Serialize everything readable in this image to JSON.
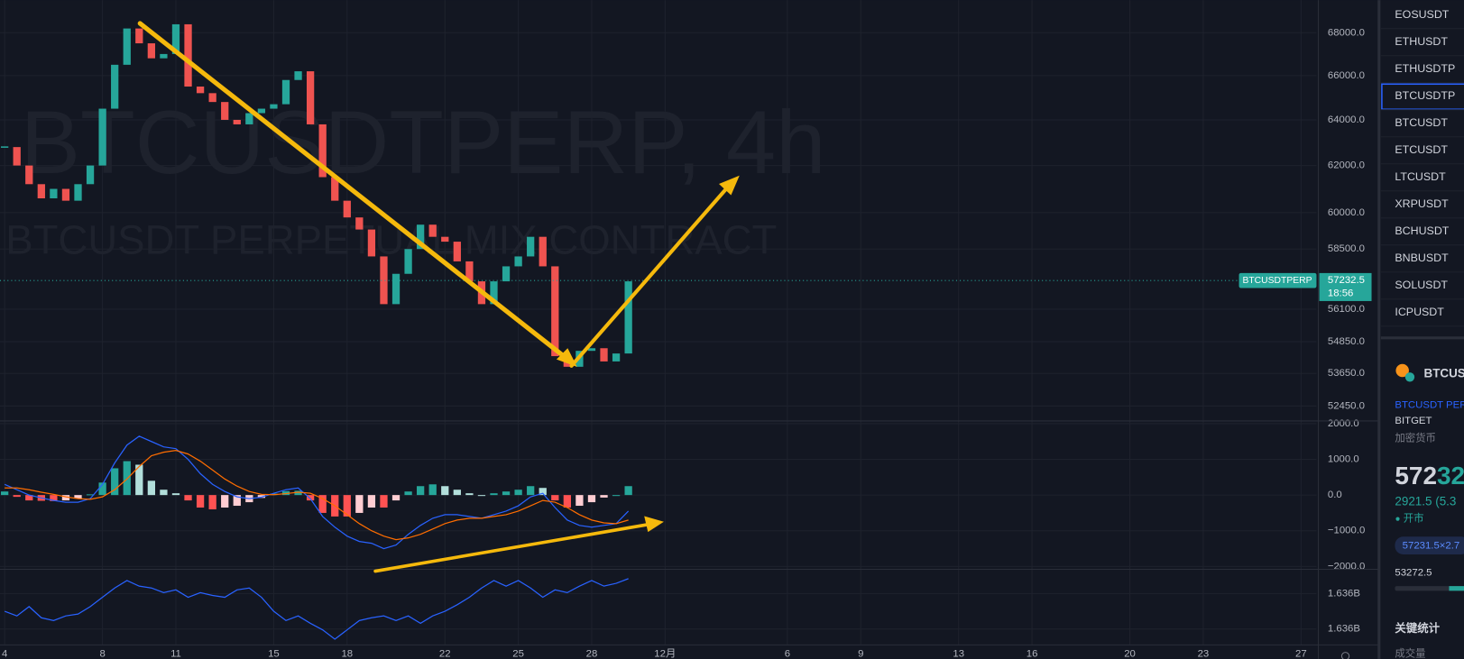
{
  "chart_data": [
    {
      "type": "candlestick",
      "watermark_title": "BTCUSDTPERP, 4h",
      "watermark_subtitle": "BTCUSDT PERPETUAL MIX CONTRACT",
      "x": [
        4,
        4.5,
        5,
        5.5,
        6,
        6.5,
        7,
        7.5,
        8,
        8.5,
        9,
        9.5,
        10,
        10.5,
        11,
        11.5,
        12,
        12.5,
        13,
        13.5,
        14,
        14.5,
        15,
        15.5,
        16,
        16.5,
        17,
        17.5,
        18,
        18.5,
        19,
        19.5,
        20,
        20.5,
        21,
        21.5,
        22,
        22.5,
        23,
        23.5,
        24,
        24.5,
        25,
        25.5,
        26,
        26.5,
        27,
        27.5,
        28,
        28.5,
        29,
        29.5
      ],
      "close": [
        62800,
        62000,
        61200,
        60600,
        61000,
        60500,
        61200,
        62000,
        64500,
        66500,
        68200,
        67500,
        66800,
        67000,
        68400,
        65500,
        65200,
        64800,
        64000,
        63800,
        64300,
        64500,
        64700,
        65800,
        66200,
        63800,
        61500,
        60500,
        59800,
        59300,
        58200,
        56300,
        57500,
        58500,
        59500,
        59000,
        58800,
        58000,
        57200,
        56300,
        57200,
        57800,
        58200,
        59000,
        57800,
        54300,
        53900,
        54500,
        54600,
        54100,
        54400,
        57200
      ],
      "up_color": "#26a69a",
      "down_color": "#ef5350",
      "xlim": [
        3.81,
        57.63
      ],
      "xticks": [
        4,
        8,
        11,
        15,
        18,
        22,
        25,
        28,
        {
          "value": 31,
          "label": "12月"
        },
        {
          "value": 36,
          "label": "6"
        },
        {
          "value": 39,
          "label": "9"
        },
        {
          "value": 43,
          "label": "13"
        },
        {
          "value": 46,
          "label": "16"
        },
        {
          "value": 50,
          "label": "20"
        },
        {
          "value": 53,
          "label": "23"
        },
        {
          "value": 57,
          "label": "27"
        }
      ],
      "log_scale": true,
      "ylim": [
        51940,
        69560
      ],
      "yticks": [
        {
          "value": 68000,
          "label": "68000.0"
        },
        {
          "value": 66000,
          "label": "66000.0"
        },
        {
          "value": 64000,
          "label": "64000.0"
        },
        {
          "value": 62000,
          "label": "62000.0"
        },
        {
          "value": 60000,
          "label": "60000.0"
        },
        {
          "value": 58500,
          "label": "58500.0"
        },
        {
          "value": 56100,
          "label": "56100.0"
        },
        {
          "value": 54850,
          "label": "54850.0"
        },
        {
          "value": 53650,
          "label": "53650.0"
        },
        {
          "value": 52450,
          "label": "52450.0"
        }
      ],
      "grid": true,
      "last_price": {
        "value": 57232.5,
        "symbol": "BTCUSDTPERP",
        "countdown": "18:56",
        "color": "#26a69a"
      }
    },
    {
      "type": "macd",
      "ylim": [
        -2080,
        2050
      ],
      "yticks": [
        {
          "value": 2000,
          "label": "2000.0"
        },
        {
          "value": 1000,
          "label": "1000.0"
        },
        {
          "value": 0,
          "label": "0.0"
        },
        {
          "value": -1000,
          "label": "−1000.0"
        },
        {
          "value": -2000,
          "label": "−2000.0"
        }
      ],
      "histogram": {
        "values": [
          100,
          -50,
          -150,
          -160,
          -170,
          -150,
          -100,
          20,
          350,
          750,
          950,
          850,
          400,
          150,
          50,
          -150,
          -350,
          -400,
          -350,
          -300,
          -200,
          -80,
          40,
          110,
          120,
          -150,
          -500,
          -600,
          -600,
          -500,
          -350,
          -350,
          -150,
          100,
          250,
          300,
          250,
          150,
          50,
          0,
          50,
          100,
          150,
          250,
          200,
          -150,
          -350,
          -300,
          -200,
          -70,
          0,
          250
        ],
        "colors": {
          "up_grow": "#26a69a",
          "up_fall": "#b2dfdb",
          "down_grow": "#ff5252",
          "down_fall": "#ffcdd2"
        }
      },
      "macd_line": {
        "color": "#2962ff",
        "values": [
          300,
          150,
          0,
          -80,
          -150,
          -200,
          -200,
          -100,
          300,
          900,
          1400,
          1650,
          1500,
          1350,
          1300,
          1000,
          600,
          300,
          100,
          -50,
          -100,
          -60,
          50,
          150,
          200,
          -100,
          -600,
          -900,
          -1150,
          -1300,
          -1350,
          -1500,
          -1400,
          -1100,
          -850,
          -650,
          -550,
          -550,
          -600,
          -650,
          -550,
          -450,
          -300,
          -50,
          50,
          -350,
          -700,
          -850,
          -900,
          -850,
          -800,
          -450
        ]
      },
      "signal_line": {
        "color": "#ff6d00",
        "values": [
          200,
          200,
          150,
          80,
          20,
          -50,
          -100,
          -120,
          -50,
          150,
          450,
          800,
          1100,
          1200,
          1250,
          1150,
          950,
          700,
          450,
          250,
          100,
          20,
          10,
          40,
          80,
          50,
          -100,
          -300,
          -550,
          -800,
          -1000,
          -1150,
          -1250,
          -1200,
          -1100,
          -950,
          -800,
          -700,
          -650,
          -650,
          -600,
          -550,
          -450,
          -300,
          -150,
          -200,
          -350,
          -550,
          -700,
          -780,
          -800,
          -700
        ]
      }
    },
    {
      "type": "line",
      "color": "#2962ff",
      "ylim": [
        1635263000,
        1636926000
      ],
      "yticks": [
        {
          "value": 1636400000,
          "label": "1.636B"
        },
        {
          "value": 1635600000,
          "label": "1.636B"
        }
      ],
      "values": [
        1636001000,
        1635896000,
        1636106000,
        1635854000,
        1635791000,
        1635896000,
        1635938000,
        1636106000,
        1636316000,
        1636526000,
        1636694000,
        1636568000,
        1636526000,
        1636421000,
        1636484000,
        1636316000,
        1636421000,
        1636358000,
        1636316000,
        1636484000,
        1636526000,
        1636316000,
        1636001000,
        1635791000,
        1635896000,
        1635728000,
        1635581000,
        1635371000,
        1635581000,
        1635791000,
        1635854000,
        1635896000,
        1635791000,
        1635896000,
        1635728000,
        1635896000,
        1636001000,
        1636148000,
        1636316000,
        1636526000,
        1636694000,
        1636568000,
        1636694000,
        1636526000,
        1636316000,
        1636484000,
        1636421000,
        1636568000,
        1636694000,
        1636568000,
        1636631000,
        1636736000
      ]
    }
  ],
  "watchlist": {
    "items": [
      "EOSUSDT",
      "ETHUSDT",
      "ETHUSDTP",
      "BTCUSDTP",
      "BTCUSDT",
      "ETCUSDT",
      "LTCUSDT",
      "XRPUSDT",
      "BCHUSDT",
      "BNBUSDT",
      "SOLUSDT",
      "ICPUSDT"
    ],
    "selected": 3
  },
  "symbol_info": {
    "name": "BTCUS",
    "description": "BTCUSDT PERF",
    "exchange": "BITGET",
    "category": "加密货币",
    "price_head": "572",
    "price_tail": "32",
    "change": "2921.5 (5.3",
    "status": "开市",
    "quote": "57231.5×2.7",
    "day_low": "53272.5",
    "key_stats": "关键统计",
    "volume": "成交量"
  }
}
